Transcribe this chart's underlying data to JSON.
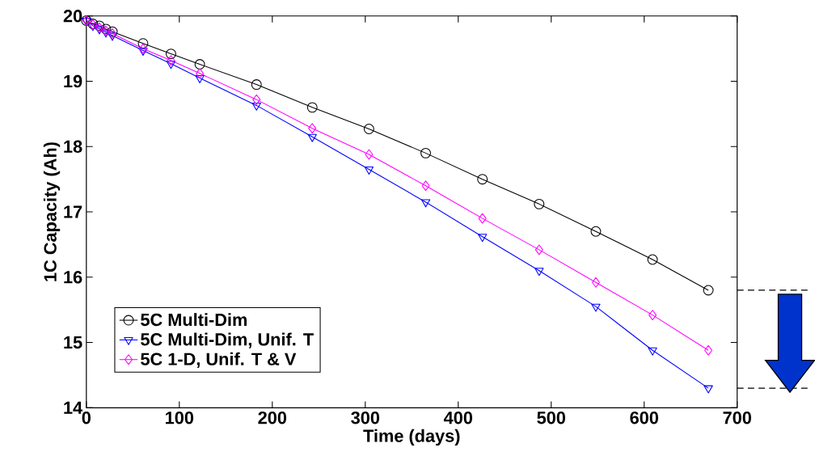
{
  "chart_data": {
    "type": "line",
    "xlabel": "Time (days)",
    "ylabel": "1C Capacity (Ah)",
    "x": [
      0,
      7,
      14,
      21,
      28,
      61,
      91,
      122,
      183,
      243,
      304,
      365,
      426,
      487,
      548,
      609,
      669
    ],
    "series": [
      {
        "name": "5C Multi-Dim",
        "color": "#000000",
        "marker": "circle",
        "values": [
          19.93,
          19.88,
          19.85,
          19.8,
          19.76,
          19.58,
          19.42,
          19.26,
          18.95,
          18.6,
          18.27,
          17.9,
          17.5,
          17.12,
          16.7,
          16.27,
          15.8
        ]
      },
      {
        "name": "5C Multi-Dim, Unif. T",
        "color": "#0000ff",
        "marker": "triangle",
        "values": [
          19.93,
          19.85,
          19.8,
          19.75,
          19.7,
          19.47,
          19.27,
          19.05,
          18.63,
          18.15,
          17.65,
          17.15,
          16.62,
          16.1,
          15.55,
          14.88,
          14.3
        ]
      },
      {
        "name": "5C 1-D, Unif. T & V",
        "color": "#ff00ff",
        "marker": "diamond",
        "values": [
          19.93,
          19.87,
          19.82,
          19.77,
          19.73,
          19.5,
          19.32,
          19.12,
          18.72,
          18.28,
          17.88,
          17.4,
          16.9,
          16.42,
          15.92,
          15.42,
          14.88
        ]
      }
    ],
    "xlim": [
      0,
      700
    ],
    "ylim": [
      14,
      20
    ],
    "xticks": [
      0,
      100,
      200,
      300,
      400,
      500,
      600,
      700
    ],
    "yticks": [
      14,
      15,
      16,
      17,
      18,
      19,
      20
    ],
    "grid": false,
    "legend": "bottom left",
    "line_style": "solid"
  }
}
